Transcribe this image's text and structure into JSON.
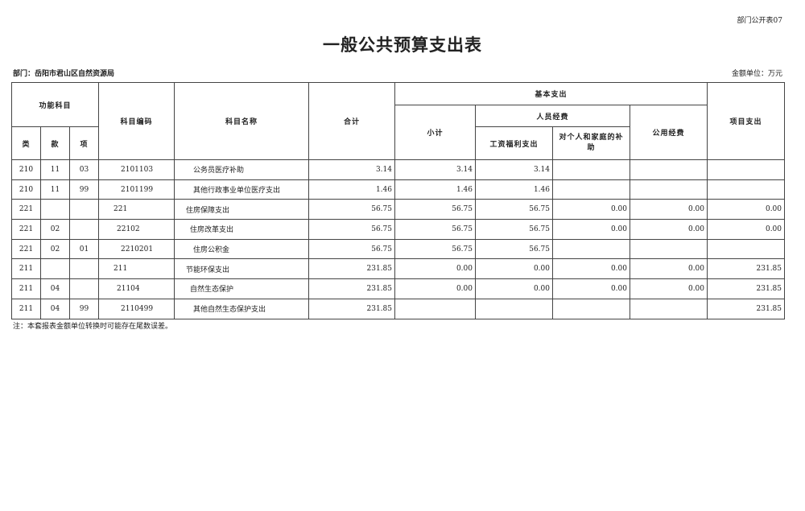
{
  "form_tag": "部门公开表07",
  "title": "一般公共预算支出表",
  "department": "部门：岳阳市君山区自然资源局",
  "unit": "金额单位：万元",
  "headers": {
    "func": "功能科目",
    "lei": "类",
    "kuan": "款",
    "xiang": "项",
    "code": "科目编码",
    "name": "科目名称",
    "total": "合计",
    "basic": "基本支出",
    "subtotal": "小计",
    "personnel": "人员经费",
    "salary": "工资福利支出",
    "subsidy": "对个人和家庭的补助",
    "public": "公用经费",
    "project": "项目支出"
  },
  "rows": [
    {
      "lei": "210",
      "kuan": "11",
      "xiang": "03",
      "code": "2101103",
      "name": "公务员医疗补助",
      "level": 3,
      "total": "3.14",
      "subtotal": "3.14",
      "salary": "3.14",
      "subsidy": "",
      "public": "",
      "project": ""
    },
    {
      "lei": "210",
      "kuan": "11",
      "xiang": "99",
      "code": "2101199",
      "name": "其他行政事业单位医疗支出",
      "level": 3,
      "total": "1.46",
      "subtotal": "1.46",
      "salary": "1.46",
      "subsidy": "",
      "public": "",
      "project": ""
    },
    {
      "lei": "221",
      "kuan": "",
      "xiang": "",
      "code": "221",
      "name": "住房保障支出",
      "level": 1,
      "total": "56.75",
      "subtotal": "56.75",
      "salary": "56.75",
      "subsidy": "0.00",
      "public": "0.00",
      "project": "0.00"
    },
    {
      "lei": "221",
      "kuan": "02",
      "xiang": "",
      "code": "22102",
      "name": "住房改革支出",
      "level": 2,
      "total": "56.75",
      "subtotal": "56.75",
      "salary": "56.75",
      "subsidy": "0.00",
      "public": "0.00",
      "project": "0.00"
    },
    {
      "lei": "221",
      "kuan": "02",
      "xiang": "01",
      "code": "2210201",
      "name": "住房公积金",
      "level": 3,
      "total": "56.75",
      "subtotal": "56.75",
      "salary": "56.75",
      "subsidy": "",
      "public": "",
      "project": ""
    },
    {
      "lei": "211",
      "kuan": "",
      "xiang": "",
      "code": "211",
      "name": "节能环保支出",
      "level": 1,
      "total": "231.85",
      "subtotal": "0.00",
      "salary": "0.00",
      "subsidy": "0.00",
      "public": "0.00",
      "project": "231.85"
    },
    {
      "lei": "211",
      "kuan": "04",
      "xiang": "",
      "code": "21104",
      "name": "自然生态保护",
      "level": 2,
      "total": "231.85",
      "subtotal": "0.00",
      "salary": "0.00",
      "subsidy": "0.00",
      "public": "0.00",
      "project": "231.85"
    },
    {
      "lei": "211",
      "kuan": "04",
      "xiang": "99",
      "code": "2110499",
      "name": "其他自然生态保护支出",
      "level": 3,
      "total": "231.85",
      "subtotal": "",
      "salary": "",
      "subsidy": "",
      "public": "",
      "project": "231.85"
    }
  ],
  "note": "注：本套报表金额单位转换时可能存在尾数误差。"
}
